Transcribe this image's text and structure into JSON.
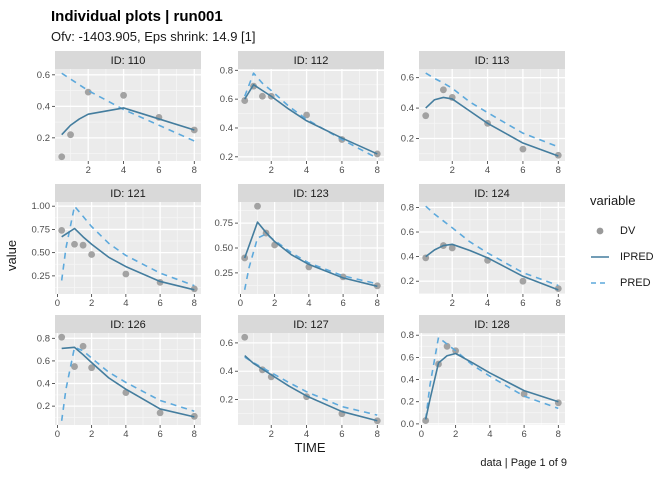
{
  "header": {
    "title": "Individual plots | run001",
    "subtitle": "Ofv: -1403.905, Eps shrink: 14.9 [1]"
  },
  "caption": "data | Page 1 of 9",
  "colors": {
    "dv_point": "#9a9a9a",
    "ipred_line": "#447d9e",
    "pred_line": "#5da9dc",
    "panel_bg": "#ebebeb",
    "strip_bg": "#d9d9d9",
    "grid_major": "#ffffff",
    "grid_minor": "#f6f6f6",
    "tick_mark": "#333333",
    "tick_text": "#4d4d4d",
    "strip_text": "#1a1a1a"
  },
  "chart_data": {
    "type": "line",
    "title": "Individual plots | run001",
    "subtitle": "Ofv: -1403.905, Eps shrink: 14.9 [1]",
    "xlabel": "TIME",
    "ylabel": "value",
    "caption": "data | Page 1 of 9",
    "legend": {
      "title": "variable",
      "entries": [
        {
          "label": "DV",
          "style": "point"
        },
        {
          "label": "IPRED",
          "style": "solid"
        },
        {
          "label": "PRED",
          "style": "dashed"
        }
      ],
      "position": "right"
    },
    "grid": true,
    "facets": [
      {
        "label": "ID: 110",
        "xlim": [
          0.12,
          8.38
        ],
        "ylim": [
          0.053,
          0.637
        ],
        "xticks": [
          2,
          4,
          6,
          8
        ],
        "xminor": [
          1,
          3,
          5,
          7
        ],
        "yticks": [
          0.2,
          0.4,
          0.6
        ],
        "ytick_labels": [
          "0.2",
          "0.4",
          "0.6"
        ],
        "yminor": [
          0.1,
          0.3,
          0.5,
          0.7
        ],
        "dv": [
          [
            0.5,
            0.08
          ],
          [
            1,
            0.22
          ],
          [
            2,
            0.49
          ],
          [
            4,
            0.47
          ],
          [
            6,
            0.33
          ],
          [
            8,
            0.25
          ]
        ],
        "ipred": [
          [
            0.5,
            0.22
          ],
          [
            1,
            0.28
          ],
          [
            1.5,
            0.32
          ],
          [
            2,
            0.35
          ],
          [
            4,
            0.39
          ],
          [
            6,
            0.32
          ],
          [
            8,
            0.25
          ]
        ],
        "pred": [
          [
            0.5,
            0.61
          ],
          [
            2,
            0.5
          ],
          [
            4,
            0.38
          ],
          [
            6,
            0.28
          ],
          [
            8,
            0.18
          ]
        ]
      },
      {
        "label": "ID: 112",
        "xlim": [
          0.12,
          8.38
        ],
        "ylim": [
          0.171,
          0.809
        ],
        "xticks": [
          2,
          4,
          6,
          8
        ],
        "xminor": [
          1,
          3,
          5,
          7
        ],
        "yticks": [
          0.2,
          0.4,
          0.6,
          0.8
        ],
        "ytick_labels": [
          "0.2",
          "0.4",
          "0.6",
          "0.8"
        ],
        "yminor": [
          0.1,
          0.3,
          0.5,
          0.7,
          0.9
        ],
        "dv": [
          [
            0.5,
            0.59
          ],
          [
            1,
            0.69
          ],
          [
            1.5,
            0.62
          ],
          [
            2,
            0.62
          ],
          [
            4,
            0.49
          ],
          [
            6,
            0.32
          ],
          [
            8,
            0.22
          ]
        ],
        "ipred": [
          [
            0.5,
            0.6
          ],
          [
            1,
            0.7
          ],
          [
            1.5,
            0.66
          ],
          [
            2,
            0.62
          ],
          [
            3,
            0.53
          ],
          [
            4,
            0.45
          ],
          [
            6,
            0.33
          ],
          [
            8,
            0.22
          ]
        ],
        "pred": [
          [
            0.5,
            0.62
          ],
          [
            1,
            0.78
          ],
          [
            1.5,
            0.71
          ],
          [
            2,
            0.66
          ],
          [
            3,
            0.55
          ],
          [
            4,
            0.46
          ],
          [
            6,
            0.32
          ],
          [
            8,
            0.19
          ]
        ]
      },
      {
        "label": "ID: 113",
        "xlim": [
          0.12,
          8.38
        ],
        "ylim": [
          0.052,
          0.657
        ],
        "xticks": [
          2,
          4,
          6,
          8
        ],
        "xminor": [
          1,
          3,
          5,
          7
        ],
        "yticks": [
          0.2,
          0.4,
          0.6
        ],
        "ytick_labels": [
          "0.2",
          "0.4",
          "0.6"
        ],
        "yminor": [
          0.1,
          0.3,
          0.5,
          0.7
        ],
        "dv": [
          [
            0.5,
            0.35
          ],
          [
            1.5,
            0.52
          ],
          [
            2,
            0.47
          ],
          [
            4,
            0.3
          ],
          [
            6,
            0.13
          ],
          [
            8,
            0.09
          ]
        ],
        "ipred": [
          [
            0.5,
            0.4
          ],
          [
            1,
            0.455
          ],
          [
            1.5,
            0.47
          ],
          [
            2,
            0.46
          ],
          [
            3,
            0.38
          ],
          [
            4,
            0.3
          ],
          [
            6,
            0.17
          ],
          [
            8,
            0.085
          ]
        ],
        "pred": [
          [
            0.5,
            0.63
          ],
          [
            1,
            0.595
          ],
          [
            1.5,
            0.565
          ],
          [
            2,
            0.53
          ],
          [
            3,
            0.44
          ],
          [
            4,
            0.37
          ],
          [
            6,
            0.235
          ],
          [
            8,
            0.145
          ]
        ]
      },
      {
        "label": "ID: 121",
        "xlim": [
          -0.14,
          8.39
        ],
        "ylim": [
          0.055,
          1.045
        ],
        "xticks": [
          0,
          2,
          4,
          6,
          8
        ],
        "xminor": [
          1,
          3,
          5,
          7
        ],
        "yticks": [
          0.25,
          0.5,
          0.75,
          1.0
        ],
        "ytick_labels": [
          "0.25",
          "0.50",
          "0.75",
          "1.00"
        ],
        "yminor": [
          0.125,
          0.375,
          0.625,
          0.875
        ],
        "dv": [
          [
            0.25,
            0.74
          ],
          [
            1,
            0.59
          ],
          [
            1.5,
            0.58
          ],
          [
            2,
            0.48
          ],
          [
            4,
            0.27
          ],
          [
            6,
            0.18
          ],
          [
            8,
            0.11
          ]
        ],
        "ipred": [
          [
            0.25,
            0.67
          ],
          [
            0.5,
            0.7
          ],
          [
            1,
            0.76
          ],
          [
            1.5,
            0.67
          ],
          [
            2,
            0.59
          ],
          [
            3,
            0.45
          ],
          [
            4,
            0.35
          ],
          [
            6,
            0.19
          ],
          [
            8,
            0.1
          ]
        ],
        "pred": [
          [
            0.25,
            0.2
          ],
          [
            0.5,
            0.55
          ],
          [
            1,
            1.0
          ],
          [
            1.5,
            0.89
          ],
          [
            2,
            0.78
          ],
          [
            3,
            0.6
          ],
          [
            4,
            0.47
          ],
          [
            6,
            0.28
          ],
          [
            8,
            0.145
          ]
        ]
      },
      {
        "label": "ID: 123",
        "xlim": [
          -0.14,
          8.39
        ],
        "ylim": [
          0.038,
          0.962
        ],
        "xticks": [
          0,
          2,
          4,
          6,
          8
        ],
        "xminor": [
          1,
          3,
          5,
          7
        ],
        "yticks": [
          0.25,
          0.5,
          0.75
        ],
        "ytick_labels": [
          "0.25",
          "0.50",
          "0.75"
        ],
        "yminor": [
          0.125,
          0.375,
          0.625,
          0.875
        ],
        "dv": [
          [
            0.25,
            0.4
          ],
          [
            1,
            0.92
          ],
          [
            1.5,
            0.65
          ],
          [
            2,
            0.53
          ],
          [
            4,
            0.31
          ],
          [
            6,
            0.21
          ],
          [
            8,
            0.12
          ]
        ],
        "ipred": [
          [
            0.25,
            0.4
          ],
          [
            1,
            0.76
          ],
          [
            1.5,
            0.655
          ],
          [
            2,
            0.565
          ],
          [
            3,
            0.43
          ],
          [
            4,
            0.335
          ],
          [
            6,
            0.2
          ],
          [
            8,
            0.115
          ]
        ],
        "pred": [
          [
            0.25,
            0.08
          ],
          [
            0.5,
            0.3
          ],
          [
            1,
            0.6
          ],
          [
            1.5,
            0.64
          ],
          [
            2,
            0.575
          ],
          [
            3,
            0.45
          ],
          [
            4,
            0.35
          ],
          [
            6,
            0.22
          ],
          [
            8,
            0.14
          ]
        ]
      },
      {
        "label": "ID: 124",
        "xlim": [
          0.12,
          8.38
        ],
        "ylim": [
          0.096,
          0.844
        ],
        "xticks": [
          2,
          4,
          6,
          8
        ],
        "xminor": [
          1,
          3,
          5,
          7
        ],
        "yticks": [
          0.2,
          0.4,
          0.6,
          0.8
        ],
        "ytick_labels": [
          "0.2",
          "0.4",
          "0.6",
          "0.8"
        ],
        "yminor": [
          0.1,
          0.3,
          0.5,
          0.7,
          0.9
        ],
        "dv": [
          [
            0.5,
            0.39
          ],
          [
            1.5,
            0.49
          ],
          [
            2,
            0.47
          ],
          [
            4,
            0.37
          ],
          [
            6,
            0.2
          ],
          [
            8,
            0.14
          ]
        ],
        "ipred": [
          [
            0.5,
            0.4
          ],
          [
            1,
            0.455
          ],
          [
            1.5,
            0.49
          ],
          [
            2,
            0.5
          ],
          [
            3,
            0.45
          ],
          [
            4,
            0.39
          ],
          [
            6,
            0.24
          ],
          [
            8,
            0.13
          ]
        ],
        "pred": [
          [
            0.5,
            0.81
          ],
          [
            1,
            0.745
          ],
          [
            1.5,
            0.69
          ],
          [
            2,
            0.635
          ],
          [
            3,
            0.52
          ],
          [
            4,
            0.43
          ],
          [
            6,
            0.27
          ],
          [
            8,
            0.165
          ]
        ]
      },
      {
        "label": "ID: 126",
        "xlim": [
          -0.14,
          8.39
        ],
        "ylim": [
          0.033,
          0.847
        ],
        "xticks": [
          0,
          2,
          4,
          6,
          8
        ],
        "xminor": [
          1,
          3,
          5,
          7
        ],
        "yticks": [
          0.2,
          0.4,
          0.6,
          0.8
        ],
        "ytick_labels": [
          "0.2",
          "0.4",
          "0.6",
          "0.8"
        ],
        "yminor": [
          0.1,
          0.3,
          0.5,
          0.7,
          0.9
        ],
        "dv": [
          [
            0.25,
            0.81
          ],
          [
            1,
            0.55
          ],
          [
            1.5,
            0.73
          ],
          [
            2,
            0.54
          ],
          [
            4,
            0.32
          ],
          [
            6,
            0.14
          ],
          [
            8,
            0.11
          ]
        ],
        "ipred": [
          [
            0.25,
            0.71
          ],
          [
            1,
            0.72
          ],
          [
            1.5,
            0.655
          ],
          [
            2,
            0.585
          ],
          [
            3,
            0.45
          ],
          [
            4,
            0.35
          ],
          [
            6,
            0.175
          ],
          [
            8,
            0.105
          ]
        ],
        "pred": [
          [
            0.25,
            0.07
          ],
          [
            0.5,
            0.35
          ],
          [
            1,
            0.72
          ],
          [
            1.5,
            0.69
          ],
          [
            2,
            0.625
          ],
          [
            3,
            0.5
          ],
          [
            4,
            0.41
          ],
          [
            6,
            0.25
          ],
          [
            8,
            0.155
          ]
        ]
      },
      {
        "label": "ID: 127",
        "xlim": [
          0.12,
          8.38
        ],
        "ylim": [
          0.02,
          0.67
        ],
        "xticks": [
          2,
          4,
          6,
          8
        ],
        "xminor": [
          1,
          3,
          5,
          7
        ],
        "yticks": [
          0.2,
          0.4,
          0.6
        ],
        "ytick_labels": [
          "0.2",
          "0.4",
          "0.6"
        ],
        "yminor": [
          0.1,
          0.3,
          0.5,
          0.7
        ],
        "dv": [
          [
            0.5,
            0.64
          ],
          [
            1.5,
            0.41
          ],
          [
            2,
            0.36
          ],
          [
            4,
            0.22
          ],
          [
            6,
            0.1
          ],
          [
            8,
            0.05
          ]
        ],
        "ipred": [
          [
            0.5,
            0.51
          ],
          [
            1,
            0.455
          ],
          [
            1.5,
            0.415
          ],
          [
            2,
            0.375
          ],
          [
            3,
            0.295
          ],
          [
            4,
            0.225
          ],
          [
            6,
            0.115
          ],
          [
            8,
            0.05
          ]
        ],
        "pred": [
          [
            0.5,
            0.5
          ],
          [
            1,
            0.46
          ],
          [
            1.5,
            0.425
          ],
          [
            2,
            0.39
          ],
          [
            3,
            0.32
          ],
          [
            4,
            0.255
          ],
          [
            6,
            0.15
          ],
          [
            8,
            0.09
          ]
        ]
      },
      {
        "label": "ID: 128",
        "xlim": [
          -0.14,
          8.39
        ],
        "ylim": [
          -0.01,
          0.82
        ],
        "xticks": [
          0,
          2,
          4,
          6,
          8
        ],
        "xminor": [
          1,
          3,
          5,
          7
        ],
        "yticks": [
          0.0,
          0.2,
          0.4,
          0.6,
          0.8
        ],
        "ytick_labels": [
          "0.0",
          "0.2",
          "0.4",
          "0.6",
          "0.8"
        ],
        "yminor": [
          0.1,
          0.3,
          0.5,
          0.7
        ],
        "dv": [
          [
            0.25,
            0.03
          ],
          [
            1,
            0.54
          ],
          [
            1.5,
            0.7
          ],
          [
            2,
            0.66
          ],
          [
            6,
            0.27
          ],
          [
            8,
            0.19
          ]
        ],
        "ipred": [
          [
            0.25,
            0.04
          ],
          [
            0.5,
            0.22
          ],
          [
            1,
            0.55
          ],
          [
            1.5,
            0.615
          ],
          [
            2,
            0.635
          ],
          [
            3,
            0.55
          ],
          [
            4,
            0.46
          ],
          [
            6,
            0.3
          ],
          [
            8,
            0.2
          ]
        ],
        "pred": [
          [
            0.25,
            0.04
          ],
          [
            0.5,
            0.35
          ],
          [
            1,
            0.78
          ],
          [
            1.5,
            0.72
          ],
          [
            2,
            0.66
          ],
          [
            3,
            0.53
          ],
          [
            4,
            0.43
          ],
          [
            6,
            0.25
          ],
          [
            8,
            0.14
          ]
        ]
      }
    ]
  }
}
